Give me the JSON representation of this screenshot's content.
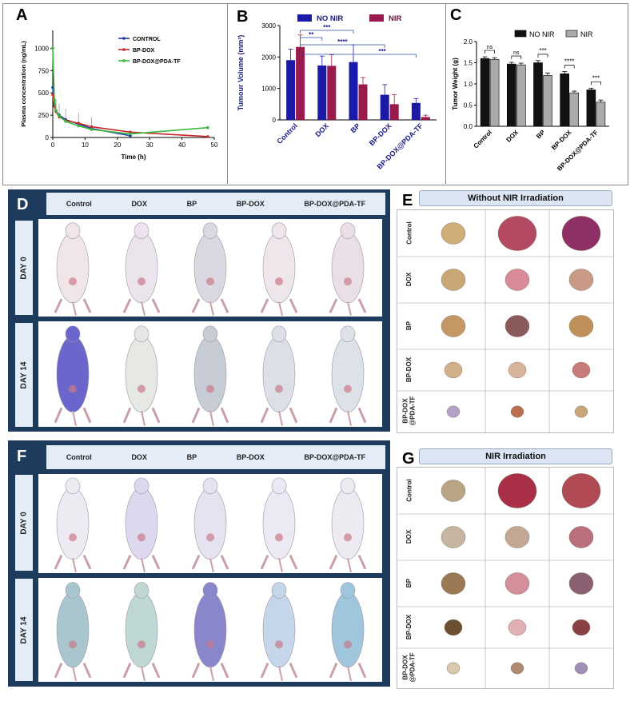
{
  "panels": {
    "A": "A",
    "B": "B",
    "C": "C",
    "D": "D",
    "E": "E",
    "F": "F",
    "G": "G"
  },
  "chart_data": [
    {
      "type": "line",
      "panel": "A",
      "xlabel": "Time (h)",
      "ylabel": "Plasma concentration (ng/mL)",
      "xlim": [
        0,
        50
      ],
      "ylim": [
        0,
        1200
      ],
      "xticks": [
        "0",
        "10",
        "20",
        "30",
        "40",
        "50"
      ],
      "yticks": [
        "0",
        "250",
        "500",
        "750",
        "1000"
      ],
      "series": [
        {
          "name": "CONTROL",
          "color": "#1f3aa8",
          "x": [
            0,
            0.5,
            1,
            2,
            4,
            8,
            12,
            24
          ],
          "y": [
            560,
            360,
            300,
            250,
            200,
            150,
            100,
            20
          ]
        },
        {
          "name": "BP-DOX",
          "color": "#c62828",
          "x": [
            0,
            0.5,
            1,
            2,
            4,
            8,
            12,
            24,
            48
          ],
          "y": [
            480,
            350,
            290,
            230,
            190,
            160,
            120,
            60,
            10
          ]
        },
        {
          "name": "BP-DOX@PDA-TF",
          "color": "#3cb83c",
          "x": [
            0,
            0.5,
            1,
            2,
            4,
            8,
            12,
            24,
            48
          ],
          "y": [
            1000,
            420,
            300,
            240,
            180,
            130,
            90,
            40,
            110
          ]
        }
      ]
    },
    {
      "type": "bar",
      "panel": "B",
      "ylabel": "Tumour Volume (mm³)",
      "categories": [
        "Control",
        "DOX",
        "BP",
        "BP-DOX",
        "BP-DOX@PDA-TF"
      ],
      "ylim": [
        0,
        3000
      ],
      "yticks": [
        "0",
        "1000",
        "2000",
        "3000"
      ],
      "series": [
        {
          "name": "NO NIR",
          "color": "#1a1aa6",
          "values": [
            1900,
            1730,
            1840,
            800,
            540
          ],
          "errors": [
            350,
            300,
            550,
            320,
            140
          ]
        },
        {
          "name": "NIR",
          "color": "#9a1a4e",
          "values": [
            2320,
            1720,
            1130,
            500,
            90
          ],
          "errors": [
            380,
            350,
            220,
            300,
            60
          ]
        }
      ],
      "significance": [
        "***",
        "**",
        "****",
        "***"
      ]
    },
    {
      "type": "bar",
      "panel": "C",
      "ylabel": "Tumor Weight (g)",
      "categories": [
        "Control",
        "DOX",
        "BP",
        "BP-DOX",
        "BP-DOX@PDA-TF"
      ],
      "ylim": [
        0,
        2.0
      ],
      "yticks": [
        "0.0",
        "0.5",
        "1.0",
        "1.5",
        "2.0"
      ],
      "series": [
        {
          "name": "NO NIR",
          "color": "#111111",
          "values": [
            1.6,
            1.47,
            1.5,
            1.24,
            0.86
          ],
          "errors": [
            0.04,
            0.04,
            0.05,
            0.05,
            0.04
          ]
        },
        {
          "name": "NIR",
          "color": "#aaaaaa",
          "values": [
            1.58,
            1.45,
            1.2,
            0.79,
            0.57
          ],
          "errors": [
            0.04,
            0.04,
            0.06,
            0.04,
            0.05
          ]
        }
      ],
      "significance": [
        "ns",
        "ns",
        "***",
        "****",
        "***"
      ]
    }
  ],
  "panel_D": {
    "columns": [
      "Control",
      "DOX",
      "BP",
      "BP-DOX",
      "BP-DOX@PDA-TF"
    ],
    "rows": [
      "DAY 0",
      "DAY 14"
    ]
  },
  "panel_E": {
    "title": "Without NIR Irradiation",
    "rows": [
      "Control",
      "DOX",
      "BP",
      "BP-DOX",
      "BP-DOX\n@PDA-TF"
    ]
  },
  "panel_F": {
    "columns": [
      "Control",
      "DOX",
      "BP",
      "BP-DOX",
      "BP-DOX@PDA-TF"
    ],
    "rows": [
      "DAY 0",
      "DAY 14"
    ]
  },
  "panel_G": {
    "title": "NIR Irradiation",
    "rows": [
      "Control",
      "DOX",
      "BP",
      "BP-DOX",
      "BP-DOX\n@PDA-TF"
    ]
  },
  "tumor_colors": {
    "E": [
      [
        "#cfae7a",
        "#b34a62",
        "#8e2f66"
      ],
      [
        "#c9a675",
        "#d98a98",
        "#c99a86"
      ],
      [
        "#c39865",
        "#8a5a5a",
        "#c0905a"
      ],
      [
        "#d2b08a",
        "#d8b49a",
        "#c97a7a"
      ],
      [
        "#b5a0c8",
        "#b87050",
        "#c9a67a"
      ]
    ],
    "G": [
      [
        "#b9a486",
        "#a82f45",
        "#b04a55"
      ],
      [
        "#c6b5a0",
        "#c4a896",
        "#b9707a"
      ],
      [
        "#9a7a55",
        "#d4909a",
        "#8a6072"
      ],
      [
        "#6a5030",
        "#e0b0b5",
        "#8a4045"
      ],
      [
        "#d8c8b0",
        "#b08a70",
        "#a090b8"
      ]
    ]
  },
  "mouse_colors": {
    "D0": [
      "#f0e6e8",
      "#ece4ec",
      "#dcd8e2",
      "#eee6ea",
      "#eadfe6"
    ],
    "D14": [
      "#6a66cc",
      "#e6e8e4",
      "#c8ccd4",
      "#dce0e6",
      "#dde2e8"
    ],
    "F0": [
      "#eeeaf2",
      "#ddd8ee",
      "#e6e2f0",
      "#ece8f4",
      "#eeeaf2"
    ],
    "F14": [
      "#a9c6cf",
      "#c0d8d4",
      "#8a86cc",
      "#c6d6ea",
      "#9fc6dc"
    ]
  }
}
